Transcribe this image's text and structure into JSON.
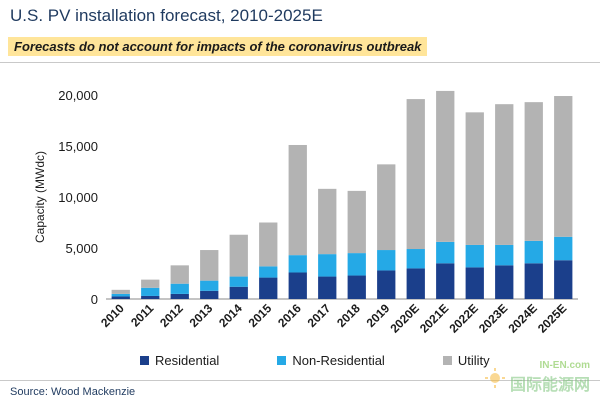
{
  "header": {
    "title": "U.S. PV installation forecast, 2010-2025E",
    "subtitle": "Forecasts do not account for impacts of the coronavirus outbreak"
  },
  "footer": {
    "source": "Source: Wood Mackenzie",
    "watermark_top": "IN-EN.com",
    "watermark_bottom": "国际能源网"
  },
  "chart_data": {
    "type": "bar",
    "stacked": true,
    "categories": [
      "2010",
      "2011",
      "2012",
      "2013",
      "2014",
      "2015",
      "2016",
      "2017",
      "2018",
      "2019",
      "2020E",
      "2021E",
      "2022E",
      "2023E",
      "2024E",
      "2025E"
    ],
    "series": [
      {
        "name": "Residential",
        "color": "#1b3f8b",
        "values": [
          250,
          300,
          500,
          800,
          1200,
          2100,
          2600,
          2200,
          2300,
          2800,
          3000,
          3500,
          3100,
          3300,
          3500,
          3800
        ]
      },
      {
        "name": "Non-Residential",
        "color": "#25a9e6",
        "values": [
          250,
          800,
          1000,
          1000,
          1000,
          1100,
          1700,
          2200,
          2200,
          2000,
          1900,
          2100,
          2200,
          2000,
          2200,
          2300
        ]
      },
      {
        "name": "Utility",
        "color": "#b3b3b3",
        "values": [
          400,
          800,
          1800,
          3000,
          4100,
          4300,
          10800,
          6400,
          6100,
          8400,
          14700,
          14800,
          13000,
          13800,
          13600,
          13800
        ]
      }
    ],
    "ylabel": "Capacity (MWdc)",
    "ylim": [
      0,
      20000
    ],
    "yticks": [
      0,
      5000,
      10000,
      15000,
      20000
    ],
    "ytick_labels": [
      "0",
      "5,000",
      "10,000",
      "15,000",
      "20,000"
    ],
    "grid": false,
    "legend_position": "bottom"
  }
}
